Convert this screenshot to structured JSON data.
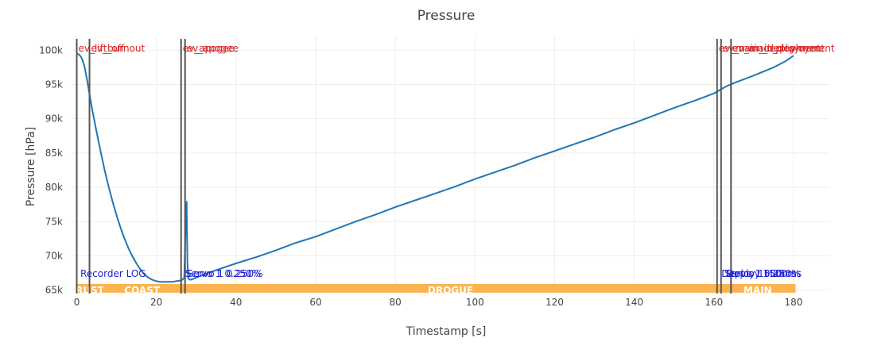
{
  "chart_data": {
    "type": "line",
    "title": "Pressure",
    "xlabel": "Timestamp [s]",
    "ylabel": "Pressure [hPa]",
    "xlim": [
      -1.5,
      189
    ],
    "ylim": [
      64500,
      102000
    ],
    "x_ticks": [
      0,
      20,
      40,
      60,
      80,
      100,
      120,
      140,
      160,
      180
    ],
    "y_ticks": [
      {
        "value": 65000,
        "label": "65k"
      },
      {
        "value": 70000,
        "label": "70k"
      },
      {
        "value": 75000,
        "label": "75k"
      },
      {
        "value": 80000,
        "label": "80k"
      },
      {
        "value": 85000,
        "label": "85k"
      },
      {
        "value": 90000,
        "label": "90k"
      },
      {
        "value": 95000,
        "label": "95k"
      },
      {
        "value": 100000,
        "label": "100k"
      }
    ],
    "grid": true,
    "colors": {
      "line": "#1f77b4",
      "event_line": "#555555",
      "event_text": "#d62728",
      "note_text": "#1f1fd6",
      "phase_band": "#fbb44f",
      "grid": "#eeeeee"
    },
    "series": [
      {
        "x": [
          0,
          0.5,
          1,
          1.5,
          2,
          2.5,
          3,
          4,
          5,
          6,
          7,
          8,
          9,
          10,
          11,
          12,
          13,
          14,
          15,
          16,
          17,
          18,
          19,
          20,
          21,
          22,
          23,
          24,
          25,
          26,
          26.5,
          27,
          27.3,
          27.6,
          27.8,
          28,
          28.5,
          29,
          30,
          32,
          35,
          40,
          45,
          50,
          55,
          60,
          65,
          70,
          75,
          80,
          85,
          90,
          95,
          100,
          105,
          110,
          115,
          120,
          125,
          130,
          135,
          140,
          145,
          150,
          155,
          160,
          163,
          165,
          170,
          175,
          178,
          180
        ],
        "y": [
          99500,
          99400,
          99100,
          98500,
          97500,
          96000,
          94300,
          91000,
          88000,
          85200,
          82500,
          80100,
          77900,
          75900,
          74100,
          72500,
          71100,
          69900,
          68900,
          68000,
          67300,
          66800,
          66500,
          66300,
          66200,
          66200,
          66200,
          66200,
          66300,
          66400,
          66500,
          66800,
          73000,
          77900,
          69000,
          66700,
          66500,
          66600,
          66800,
          67300,
          67900,
          68900,
          69800,
          70800,
          71900,
          72800,
          73900,
          75000,
          76000,
          77100,
          78100,
          79100,
          80100,
          81200,
          82200,
          83200,
          84300,
          85300,
          86300,
          87300,
          88400,
          89400,
          90500,
          91600,
          92600,
          93700,
          94700,
          95200,
          96300,
          97500,
          98400,
          99200
        ]
      }
    ],
    "events": [
      {
        "x": 0,
        "label": "ev_lift_off"
      },
      {
        "x": 3.2,
        "label": "ev_burnout"
      },
      {
        "x": 26.2,
        "label": "ev_apogee"
      },
      {
        "x": 27.2,
        "label": "ev_apogee"
      },
      {
        "x": 160.8,
        "label": "ev_main_deployment"
      },
      {
        "x": 161.8,
        "label": "ev_main_deployment"
      },
      {
        "x": 164.3,
        "label": "ev_main_deployment"
      }
    ],
    "notes": [
      {
        "x": 0.3,
        "label": "Recorder LOG"
      },
      {
        "x": 26.6,
        "label": "Servo 1 0.250%"
      },
      {
        "x": 27.1,
        "label": "Servo 1 0.250%"
      },
      {
        "x": 161.3,
        "label": "Deploy 1500ms"
      },
      {
        "x": 162.1,
        "label": "Servo 1 0.250%"
      },
      {
        "x": 162.6,
        "label": "Deploy 1500ms"
      }
    ],
    "phases": [
      {
        "label": "RUST",
        "x0": 0,
        "x1": 6.6
      },
      {
        "label": "COAST",
        "x0": 6.6,
        "x1": 26.2
      },
      {
        "label": "DROGUE",
        "x0": 26.2,
        "x1": 161.5
      },
      {
        "label": "MAIN",
        "x0": 161.5,
        "x1": 180.5
      }
    ]
  }
}
